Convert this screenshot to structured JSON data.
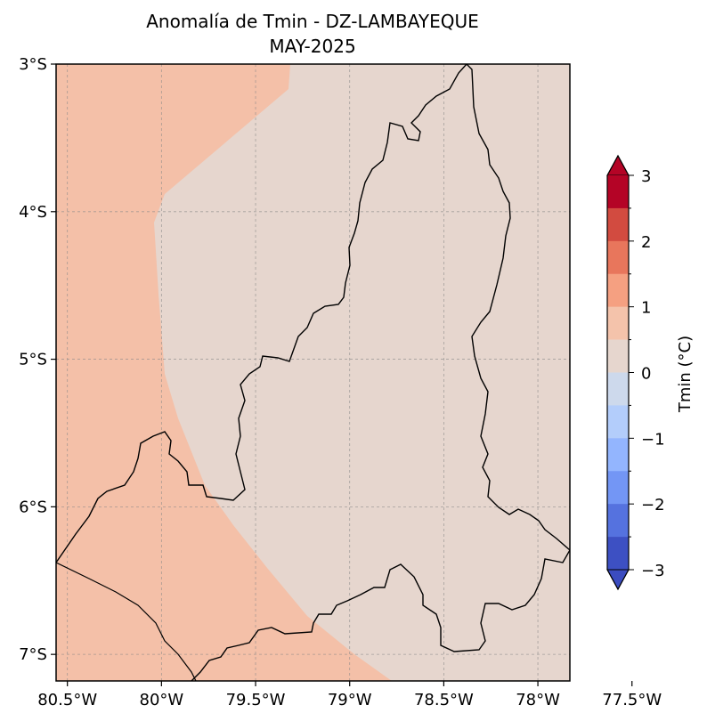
{
  "title": {
    "line1": "Anomalía de Tmin - DZ-LAMBAYEQUE",
    "line2": "MAY-2025"
  },
  "map": {
    "lon_ticks": [
      "80.5°W",
      "80°W",
      "79.5°W",
      "79°W",
      "78.5°W",
      "78°W",
      "77.5°W"
    ],
    "lat_ticks": [
      "3°S",
      "4°S",
      "5°S",
      "6°S",
      "7°S"
    ],
    "lon_range": [
      -80.56,
      -77.83
    ],
    "lat_range": [
      -7.18,
      -3.0
    ],
    "gridlines": true,
    "region_colors": {
      "warm_anomaly": "#f4c0a8",
      "neutral_anomaly": "#e6d6ce"
    }
  },
  "colorbar": {
    "label": "Tmin (°C)",
    "tick_labels": [
      "3",
      "2",
      "1",
      "0",
      "−1",
      "−2",
      "−3"
    ],
    "range": [
      -3,
      3
    ],
    "step": 0.5,
    "extend": "both",
    "colors_top_to_bottom": [
      "#b40426",
      "#d24b40",
      "#e8765c",
      "#f5a081",
      "#f4c3ab",
      "#e6d6ce",
      "#cdd9ec",
      "#b3cdfb",
      "#93b5fe",
      "#7396f5",
      "#5572df",
      "#3d50c3"
    ],
    "extend_colors": {
      "max": "#b40426",
      "min": "#3b4cc0"
    }
  }
}
